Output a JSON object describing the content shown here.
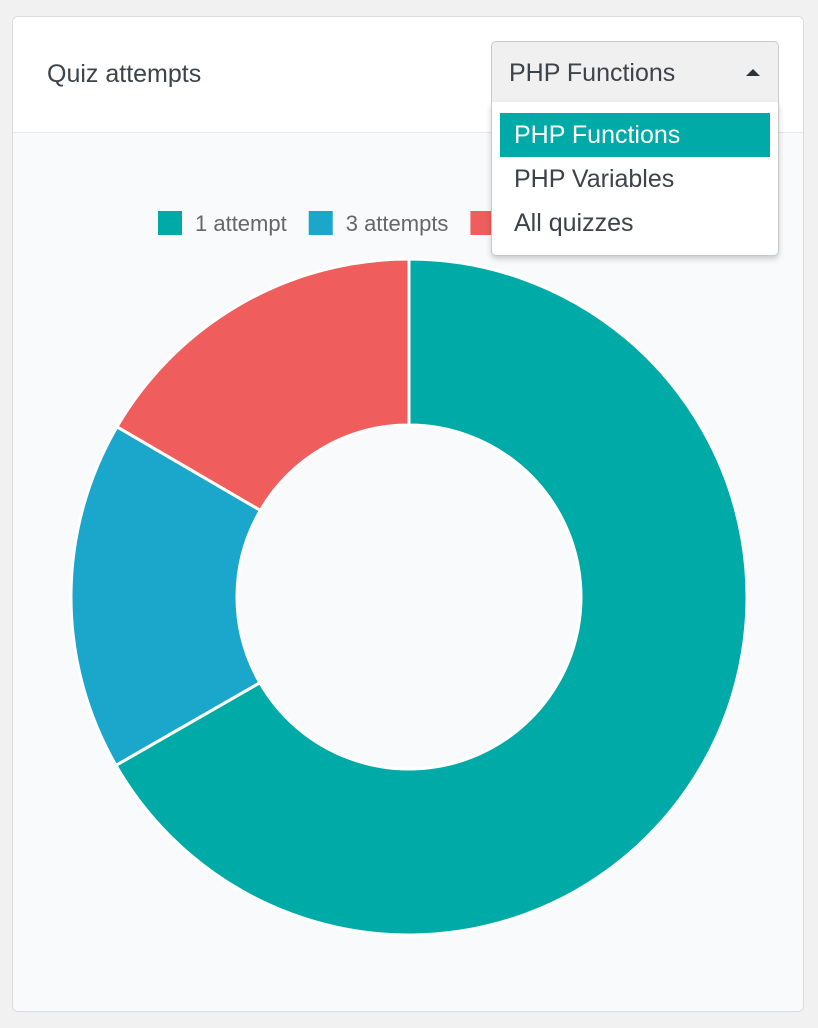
{
  "header": {
    "title": "Quiz attempts"
  },
  "quiz_select": {
    "value": "PHP Functions",
    "options": [
      "PHP Functions",
      "PHP Variables",
      "All quizzes"
    ],
    "selected_index": 0
  },
  "colors": {
    "accent": "#00aba7",
    "series_1": "#00aba7",
    "series_2": "#1ba6cb",
    "series_3": "#ef5d5d"
  },
  "icons": {
    "dropdown_arrow": "caret-up-icon"
  },
  "chart_data": {
    "type": "pie",
    "variant": "doughnut",
    "legend_position": "top",
    "categories": [
      "1 attempt",
      "3 attempts",
      ""
    ],
    "values": [
      66.7,
      16.7,
      16.6
    ],
    "colors": [
      "#00aba7",
      "#1ba6cb",
      "#ef5d5d"
    ]
  }
}
